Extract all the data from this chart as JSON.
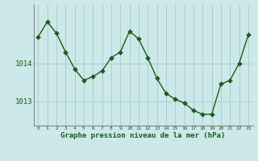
{
  "x": [
    0,
    1,
    2,
    3,
    4,
    5,
    6,
    7,
    8,
    9,
    10,
    11,
    12,
    13,
    14,
    15,
    16,
    17,
    18,
    19,
    20,
    21,
    22,
    23
  ],
  "y": [
    1014.7,
    1015.1,
    1014.8,
    1014.3,
    1013.85,
    1013.55,
    1013.65,
    1013.8,
    1014.15,
    1014.3,
    1014.85,
    1014.65,
    1014.15,
    1013.6,
    1013.2,
    1013.05,
    1012.95,
    1012.75,
    1012.65,
    1012.65,
    1013.45,
    1013.55,
    1014.0,
    1014.75
  ],
  "line_color": "#1a5c1a",
  "marker_color": "#1a5c1a",
  "bg_color": "#cce8e8",
  "grid_color": "#aacfcf",
  "xlabel": "Graphe pression niveau de la mer (hPa)",
  "xlabel_color": "#1a5c1a",
  "ytick_labels": [
    "1013",
    "1014"
  ],
  "ytick_values": [
    1013.0,
    1014.0
  ],
  "ylim_min": 1012.35,
  "ylim_max": 1015.55,
  "xlim_min": -0.5,
  "xlim_max": 23.5,
  "tick_color": "#1a5c1a",
  "spine_color": "#888888",
  "figsize": [
    3.2,
    2.0
  ],
  "dpi": 100
}
